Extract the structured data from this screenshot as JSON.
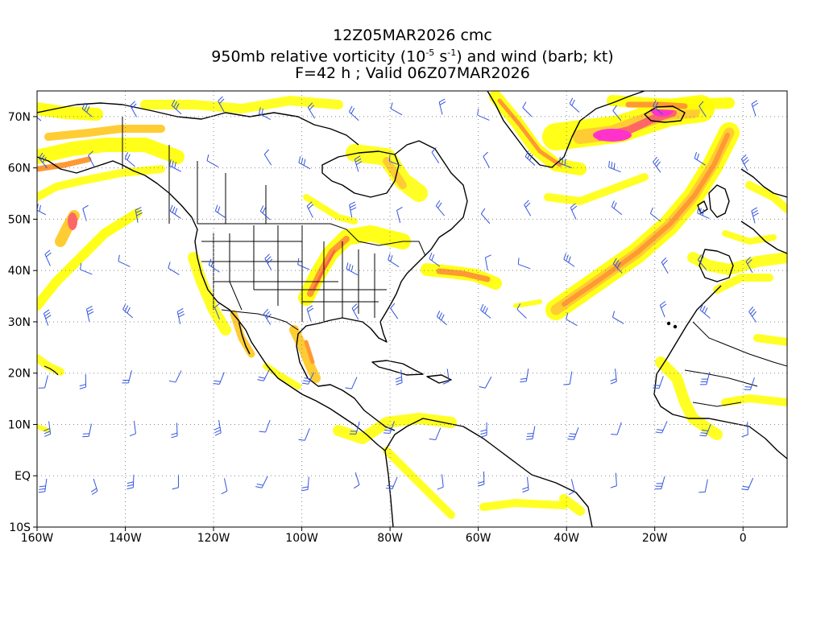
{
  "title": {
    "line1": "12Z05MAR2026 cmc",
    "line2_prefix": "950mb relative vorticity (10",
    "line2_exp1": "-5",
    "line2_mid": " s",
    "line2_exp2": "-1",
    "line2_suffix": ") and wind (barb; kt)",
    "line3": "F=42 h ; Valid 06Z07MAR2026"
  },
  "axes": {
    "x_ticks": [
      {
        "lon": -160,
        "label": "160W"
      },
      {
        "lon": -140,
        "label": "140W"
      },
      {
        "lon": -120,
        "label": "120W"
      },
      {
        "lon": -100,
        "label": "100W"
      },
      {
        "lon": -80,
        "label": "80W"
      },
      {
        "lon": -60,
        "label": "60W"
      },
      {
        "lon": -40,
        "label": "40W"
      },
      {
        "lon": -20,
        "label": "20W"
      },
      {
        "lon": 0,
        "label": "0"
      }
    ],
    "y_ticks": [
      {
        "lat": 70,
        "label": "70N"
      },
      {
        "lat": 60,
        "label": "60N"
      },
      {
        "lat": 50,
        "label": "50N"
      },
      {
        "lat": 40,
        "label": "40N"
      },
      {
        "lat": 30,
        "label": "30N"
      },
      {
        "lat": 20,
        "label": "20N"
      },
      {
        "lat": 10,
        "label": "10N"
      },
      {
        "lat": 0,
        "label": "EQ"
      },
      {
        "lat": -10,
        "label": "10S"
      }
    ],
    "lon_range": [
      -160,
      10
    ],
    "lat_range": [
      -10,
      75
    ],
    "grid": "dotted"
  },
  "colors": {
    "shade_low": "#ffff00",
    "shade_mid": "#ffcc33",
    "shade_orange": "#ff9933",
    "shade_high": "#ff5555",
    "shade_max": "#ff33cc",
    "coast": "#000000",
    "barb": "#3355dd",
    "grid": "#888888"
  }
}
